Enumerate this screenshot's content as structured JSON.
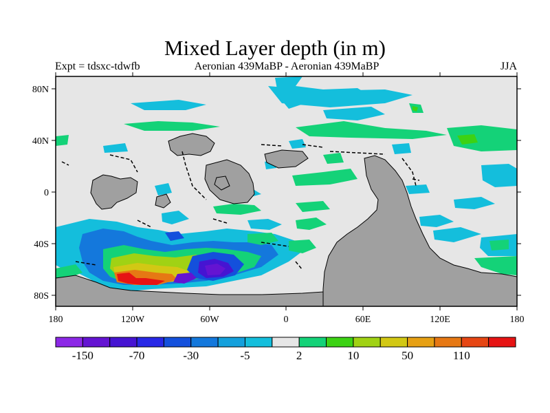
{
  "title": "Mixed Layer depth (in m)",
  "subtitle_left": "Expt = tdsxc-tdwfb",
  "subtitle_center": "Aeronian 439MaBP - Aeronian 439MaBP",
  "subtitle_right": "JJA",
  "lon_labels": [
    "180",
    "120W",
    "60W",
    "0",
    "60E",
    "120E",
    "180"
  ],
  "lat_labels": [
    "80N",
    "40N",
    "0",
    "40S",
    "80S"
  ],
  "colorbar": {
    "colors": [
      "#8c28e6",
      "#6414d2",
      "#4614d2",
      "#2828e6",
      "#1450dc",
      "#1478dc",
      "#14a0dc",
      "#14bedc",
      "#e6e6e6",
      "#14d278",
      "#3cd214",
      "#a0d214",
      "#d2c814",
      "#e6a014",
      "#e67814",
      "#e64614",
      "#e61414"
    ],
    "labels": [
      "-150",
      "-70",
      "-30",
      "-5",
      "2",
      "10",
      "50",
      "110"
    ]
  },
  "colors": {
    "land": "#a0a0a0",
    "background": "#e6e6e6"
  }
}
